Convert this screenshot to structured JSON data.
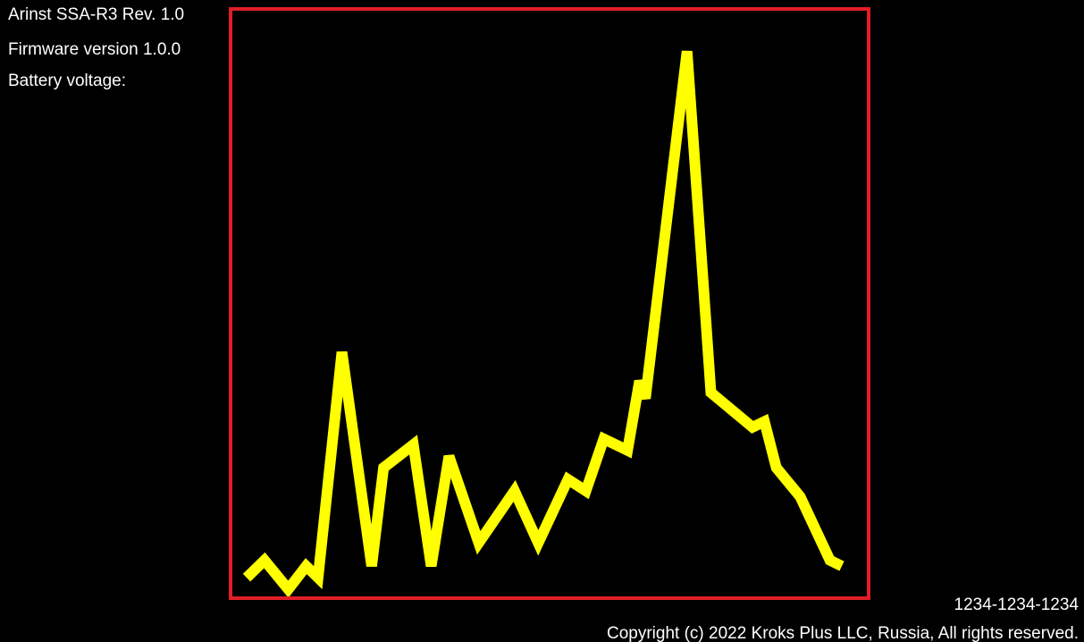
{
  "device": {
    "model": "Arinst SSA-R3 Rev. 1.0",
    "firmware": "Firmware version 1.0.0",
    "battery_label": "Battery voltage:"
  },
  "footer": {
    "serial": "1234-1234-1234",
    "copyright": "Copyright (c) 2022 Kroks Plus LLC, Russia, All rights reserved."
  },
  "colors": {
    "background": "#000000",
    "frame": "#e21e26",
    "trace": "#ffff00",
    "text": "#ffffff"
  },
  "chart_data": {
    "type": "line",
    "series": [
      {
        "values": [
          [
            0.0,
            0.02
          ],
          [
            0.03,
            0.05
          ],
          [
            0.07,
            0.0
          ],
          [
            0.1,
            0.04
          ],
          [
            0.12,
            0.02
          ],
          [
            0.16,
            0.41
          ],
          [
            0.21,
            0.04
          ],
          [
            0.23,
            0.21
          ],
          [
            0.28,
            0.25
          ],
          [
            0.31,
            0.04
          ],
          [
            0.34,
            0.23
          ],
          [
            0.39,
            0.08
          ],
          [
            0.45,
            0.17
          ],
          [
            0.49,
            0.08
          ],
          [
            0.54,
            0.19
          ],
          [
            0.57,
            0.17
          ],
          [
            0.6,
            0.26
          ],
          [
            0.64,
            0.24
          ],
          [
            0.66,
            0.36
          ],
          [
            0.67,
            0.33
          ],
          [
            0.74,
            0.93
          ],
          [
            0.78,
            0.34
          ],
          [
            0.85,
            0.28
          ],
          [
            0.87,
            0.29
          ],
          [
            0.89,
            0.21
          ],
          [
            0.93,
            0.16
          ],
          [
            0.98,
            0.05
          ],
          [
            1.0,
            0.04
          ]
        ]
      }
    ]
  }
}
